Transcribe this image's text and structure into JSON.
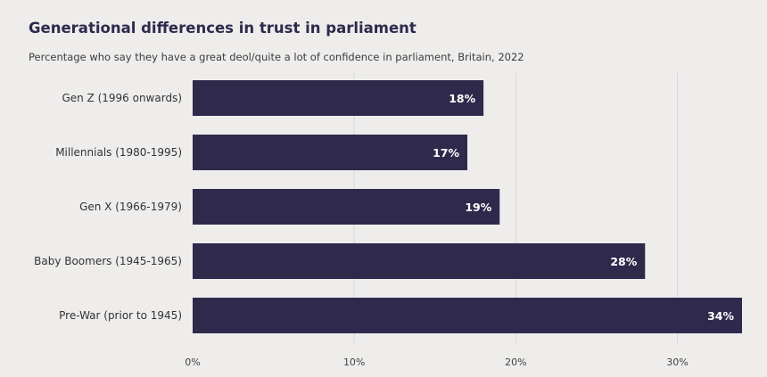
{
  "chart_data": {
    "type": "bar",
    "orientation": "horizontal",
    "title": "Generational differences in trust in parliament",
    "subtitle": "Percentage who say they have a great deol/quite a lot of confidence in parliament, Britain, 2022",
    "categories": [
      "Gen Z (1996 onwards)",
      "Millennials (1980-1995)",
      "Gen X (1966-1979)",
      "Baby Boomers (1945-1965)",
      "Pre-War (prior to 1945)"
    ],
    "values": [
      18,
      17,
      19,
      28,
      34
    ],
    "value_labels": [
      "18%",
      "17%",
      "19%",
      "28%",
      "34%"
    ],
    "xlim": [
      0,
      34
    ],
    "xticks": [
      0,
      10,
      20,
      30
    ],
    "xtick_labels": [
      "0%",
      "10%",
      "20%",
      "30%"
    ],
    "xlabel": "",
    "ylabel": "",
    "grid": true,
    "bar_color": "#2f2a4c",
    "grid_color": "#d9d8d6"
  }
}
